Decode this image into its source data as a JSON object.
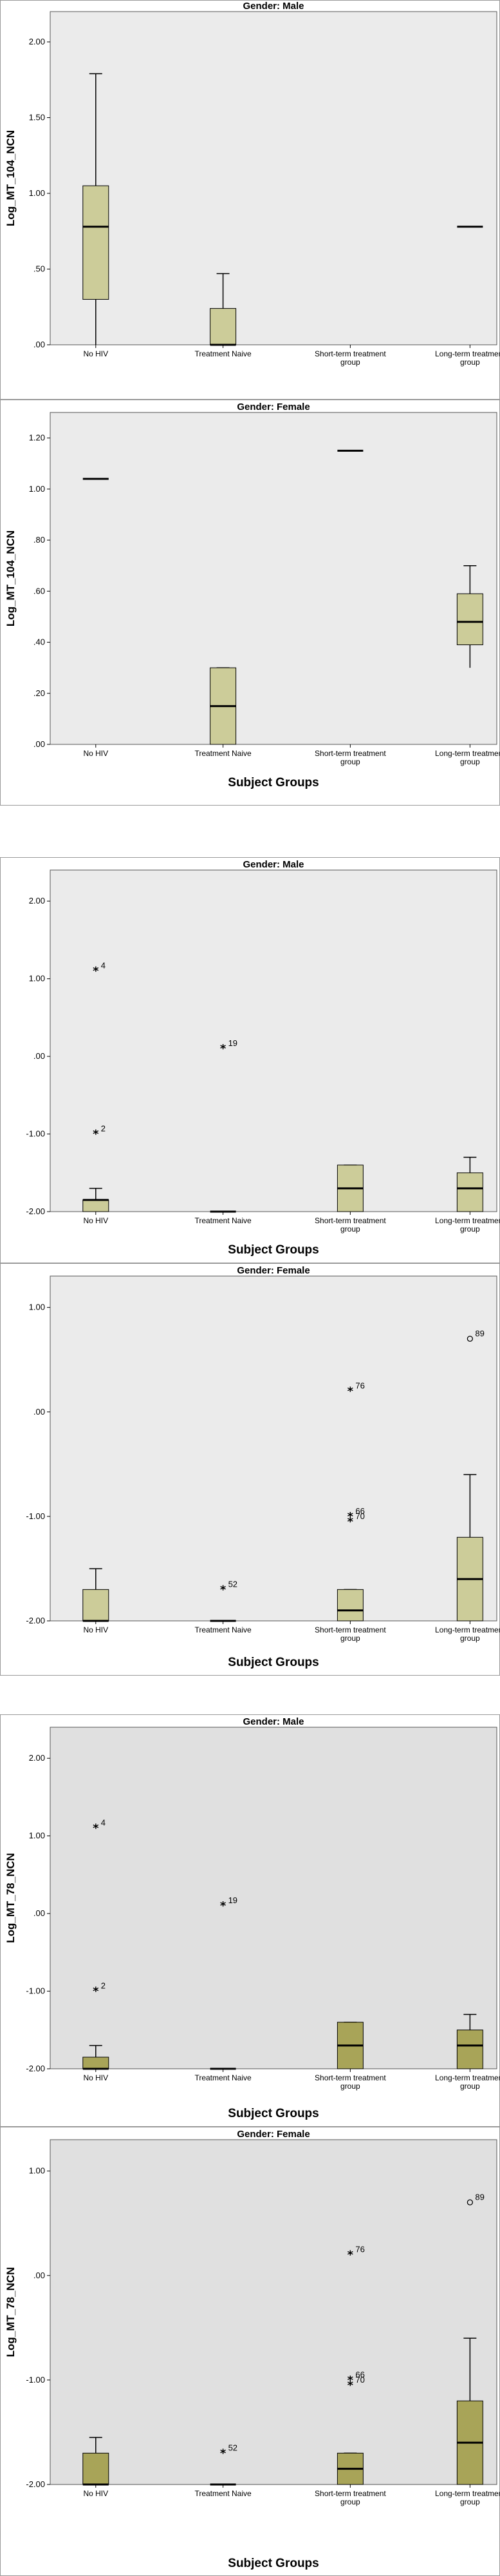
{
  "chart_data": [
    {
      "type": "box",
      "title": "Gender: Male",
      "ylabel": "Log_MT_104_NCN",
      "xlabel": "",
      "categories": [
        "No HIV",
        "Treatment Naive",
        "Short-term treatment group",
        "Long-term treatment group"
      ],
      "ylim": [
        0,
        2.2
      ],
      "yticks": [
        ".00",
        ".50",
        "1.00",
        "1.50",
        "2.00"
      ],
      "ytick_values": [
        0,
        0.5,
        1.0,
        1.5,
        2.0
      ],
      "boxes": [
        {
          "wlow": 0.0,
          "q1": 0.3,
          "median": 0.78,
          "q3": 1.05,
          "whigh": 1.79
        },
        {
          "wlow": 0.0,
          "q1": 0.0,
          "median": 0.0,
          "q3": 0.24,
          "whigh": 0.47
        },
        null,
        {
          "wlow": 0.78,
          "q1": 0.78,
          "median": 0.78,
          "q3": 0.78,
          "whigh": 0.78
        }
      ],
      "outliers": [],
      "plot_bg": "#ebebeb",
      "box_color": "#cccc99"
    },
    {
      "type": "box",
      "title": "Gender: Female",
      "ylabel": "Log_MT_104_NCN",
      "xlabel": "Subject Groups",
      "categories": [
        "No HIV",
        "Treatment Naive",
        "Short-term treatment group",
        "Long-term treatment group"
      ],
      "ylim": [
        0,
        1.3
      ],
      "yticks": [
        ".00",
        ".20",
        ".40",
        ".60",
        ".80",
        "1.00",
        "1.20"
      ],
      "ytick_values": [
        0,
        0.2,
        0.4,
        0.6,
        0.8,
        1.0,
        1.2
      ],
      "boxes": [
        {
          "wlow": 1.04,
          "q1": 1.04,
          "median": 1.04,
          "q3": 1.04,
          "whigh": 1.04
        },
        {
          "wlow": 0.0,
          "q1": 0.0,
          "median": 0.15,
          "q3": 0.3,
          "whigh": 0.3
        },
        {
          "wlow": 1.15,
          "q1": 1.15,
          "median": 1.15,
          "q3": 1.15,
          "whigh": 1.15
        },
        {
          "wlow": 0.3,
          "q1": 0.39,
          "median": 0.48,
          "q3": 0.59,
          "whigh": 0.7
        }
      ],
      "outliers": [],
      "plot_bg": "#ebebeb",
      "box_color": "#cccc99"
    },
    {
      "type": "box",
      "title": "Gender: Male",
      "ylabel": "",
      "xlabel": "Subject Groups",
      "categories": [
        "No HIV",
        "Treatment Naive",
        "Short-term treatment group",
        "Long-term treatment group"
      ],
      "ylim": [
        -2,
        2.4
      ],
      "yticks": [
        "-2.00",
        "-1.00",
        ".00",
        "1.00",
        "2.00"
      ],
      "ytick_values": [
        -2,
        -1,
        0,
        1,
        2
      ],
      "boxes": [
        {
          "wlow": -2.0,
          "q1": -2.0,
          "median": -1.85,
          "q3": -1.85,
          "whigh": -1.7
        },
        {
          "wlow": -2.0,
          "q1": -2.0,
          "median": -2.0,
          "q3": -2.0,
          "whigh": -2.0
        },
        {
          "wlow": -2.0,
          "q1": -2.0,
          "median": -1.7,
          "q3": -1.4,
          "whigh": -1.4
        },
        {
          "wlow": -2.0,
          "q1": -2.0,
          "median": -1.7,
          "q3": -1.5,
          "whigh": -1.3
        }
      ],
      "outliers": [
        {
          "group": 0,
          "value": 1.1,
          "marker": "*",
          "label": "4"
        },
        {
          "group": 0,
          "value": -1.0,
          "marker": "*",
          "label": "2"
        },
        {
          "group": 1,
          "value": 0.1,
          "marker": "*",
          "label": "19"
        }
      ],
      "plot_bg": "#ebebeb",
      "box_color": "#cccc99"
    },
    {
      "type": "box",
      "title": "Gender: Female",
      "ylabel": "",
      "xlabel": "Subject Groups",
      "categories": [
        "No HIV",
        "Treatment Naive",
        "Short-term treatment group",
        "Long-term treatment group"
      ],
      "ylim": [
        -2,
        1.3
      ],
      "yticks": [
        "-2.00",
        "-1.00",
        ".00",
        "1.00"
      ],
      "ytick_values": [
        -2,
        -1,
        0,
        1
      ],
      "boxes": [
        {
          "wlow": -2.0,
          "q1": -2.0,
          "median": -2.0,
          "q3": -1.7,
          "whigh": -1.5
        },
        {
          "wlow": -2.0,
          "q1": -2.0,
          "median": -2.0,
          "q3": -2.0,
          "whigh": -2.0
        },
        {
          "wlow": -2.0,
          "q1": -2.0,
          "median": -1.9,
          "q3": -1.7,
          "whigh": -1.7
        },
        {
          "wlow": -2.0,
          "q1": -2.0,
          "median": -1.6,
          "q3": -1.2,
          "whigh": -0.6
        }
      ],
      "outliers": [
        {
          "group": 1,
          "value": -1.7,
          "marker": "*",
          "label": "52"
        },
        {
          "group": 2,
          "value": 0.2,
          "marker": "*",
          "label": "76"
        },
        {
          "group": 2,
          "value": -1.0,
          "marker": "*",
          "label": "66"
        },
        {
          "group": 2,
          "value": -1.05,
          "marker": "*",
          "label": "70"
        },
        {
          "group": 3,
          "value": 0.7,
          "marker": "o",
          "label": "89"
        }
      ],
      "plot_bg": "#ebebeb",
      "box_color": "#cccc99"
    },
    {
      "type": "box",
      "title": "Gender: Male",
      "ylabel": "Log_MT_78_NCN",
      "xlabel": "Subject Groups",
      "categories": [
        "No HIV",
        "Treatment Naive",
        "Short-term treatment group",
        "Long-term treatment group"
      ],
      "ylim": [
        -2,
        2.4
      ],
      "yticks": [
        "-2.00",
        "-1.00",
        ".00",
        "1.00",
        "2.00"
      ],
      "ytick_values": [
        -2,
        -1,
        0,
        1,
        2
      ],
      "boxes": [
        {
          "wlow": -2.0,
          "q1": -2.0,
          "median": -2.0,
          "q3": -1.85,
          "whigh": -1.7
        },
        {
          "wlow": -2.0,
          "q1": -2.0,
          "median": -2.0,
          "q3": -2.0,
          "whigh": -2.0
        },
        {
          "wlow": -2.0,
          "q1": -2.0,
          "median": -1.7,
          "q3": -1.4,
          "whigh": -1.4
        },
        {
          "wlow": -2.0,
          "q1": -2.0,
          "median": -1.7,
          "q3": -1.5,
          "whigh": -1.3
        }
      ],
      "outliers": [
        {
          "group": 0,
          "value": 1.1,
          "marker": "*",
          "label": "4"
        },
        {
          "group": 0,
          "value": -1.0,
          "marker": "*",
          "label": "2"
        },
        {
          "group": 1,
          "value": 0.1,
          "marker": "*",
          "label": "19"
        }
      ],
      "plot_bg": "#e0e0e0",
      "box_color": "#a8a458"
    },
    {
      "type": "box",
      "title": "Gender: Female",
      "ylabel": "Log_MT_78_NCN",
      "xlabel": "Subject Groups",
      "categories": [
        "No HIV",
        "Treatment Naive",
        "Short-term treatment group",
        "Long-term treatment group"
      ],
      "ylim": [
        -2,
        1.3
      ],
      "yticks": [
        "-2.00",
        "-1.00",
        ".00",
        "1.00"
      ],
      "ytick_values": [
        -2,
        -1,
        0,
        1
      ],
      "boxes": [
        {
          "wlow": -2.0,
          "q1": -2.0,
          "median": -2.0,
          "q3": -1.7,
          "whigh": -1.55
        },
        {
          "wlow": -2.0,
          "q1": -2.0,
          "median": -2.0,
          "q3": -2.0,
          "whigh": -2.0
        },
        {
          "wlow": -2.0,
          "q1": -2.0,
          "median": -1.85,
          "q3": -1.7,
          "whigh": -1.7
        },
        {
          "wlow": -2.0,
          "q1": -2.0,
          "median": -1.6,
          "q3": -1.2,
          "whigh": -0.6
        }
      ],
      "outliers": [
        {
          "group": 1,
          "value": -1.7,
          "marker": "*",
          "label": "52"
        },
        {
          "group": 2,
          "value": 0.2,
          "marker": "*",
          "label": "76"
        },
        {
          "group": 2,
          "value": -1.0,
          "marker": "*",
          "label": "66"
        },
        {
          "group": 2,
          "value": -1.05,
          "marker": "*",
          "label": "70"
        },
        {
          "group": 3,
          "value": 0.7,
          "marker": "o",
          "label": "89"
        }
      ],
      "plot_bg": "#e0e0e0",
      "box_color": "#a8a458"
    }
  ]
}
